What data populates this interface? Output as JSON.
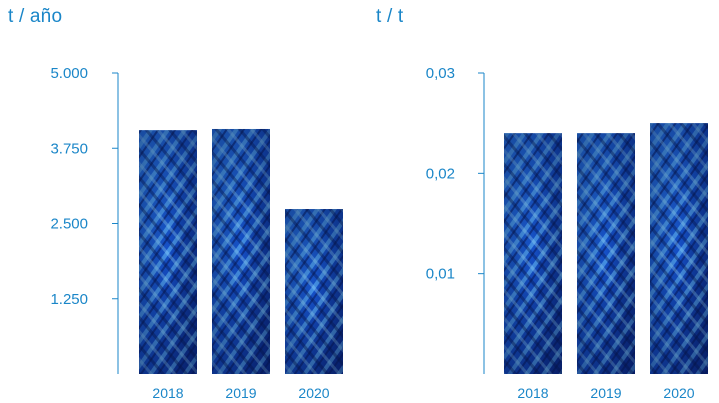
{
  "units": {
    "left": "t / año",
    "right": "t / t"
  },
  "colors": {
    "axis": "#1a86c8",
    "text": "#1a86c8",
    "bar_dark": "#0a1f6e",
    "bar_mid": "#1f5fd8",
    "bar_light": "#5ab8ff"
  },
  "chart_data": [
    {
      "type": "bar",
      "ylabel": "t / año",
      "categories": [
        "2018",
        "2019",
        "2020"
      ],
      "values": [
        4050,
        4070,
        2740
      ],
      "ylim": [
        0,
        5000
      ],
      "yticks": [
        1250,
        2500,
        3750,
        5000
      ],
      "ytick_labels": [
        "1.250",
        "2.500",
        "3.750",
        "5.000"
      ],
      "grid": false,
      "bar_texture": "coral-pattern"
    },
    {
      "type": "bar",
      "ylabel": "t / t",
      "categories": [
        "2018",
        "2019",
        "2020"
      ],
      "values": [
        0.024,
        0.024,
        0.025
      ],
      "ylim": [
        0,
        0.03
      ],
      "yticks": [
        0.01,
        0.02,
        0.03
      ],
      "ytick_labels": [
        "0,01",
        "0,02",
        "0,03"
      ],
      "grid": false,
      "bar_texture": "coral-pattern"
    }
  ]
}
